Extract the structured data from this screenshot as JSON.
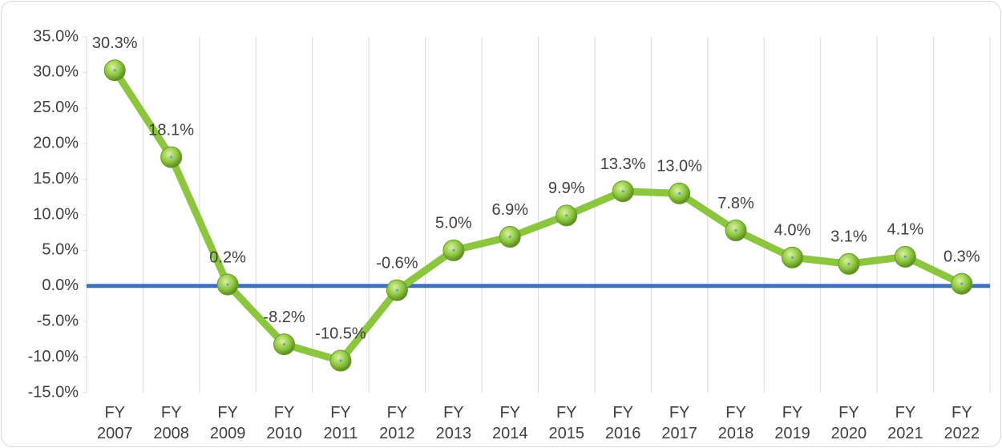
{
  "chart_data": {
    "type": "line",
    "categories": [
      "FY 2007",
      "FY 2008",
      "FY 2009",
      "FY 2010",
      "FY 2011",
      "FY 2012",
      "FY 2013",
      "FY 2014",
      "FY 2015",
      "FY 2016",
      "FY 2017",
      "FY 2018",
      "FY 2019",
      "FY 2020",
      "FY 2021",
      "FY 2022"
    ],
    "values": [
      30.3,
      18.1,
      0.2,
      -8.2,
      -10.5,
      -0.6,
      5.0,
      6.9,
      9.9,
      13.3,
      13.0,
      7.8,
      4.0,
      3.1,
      4.1,
      0.3
    ],
    "value_labels": [
      "30.3%",
      "18.1%",
      "0.2%",
      "-8.2%",
      "-10.5%",
      "-0.6%",
      "5.0%",
      "6.9%",
      "9.9%",
      "13.3%",
      "13.0%",
      "7.8%",
      "4.0%",
      "3.1%",
      "4.1%",
      "0.3%"
    ],
    "color": "#8cc63f",
    "ylim": [
      -15,
      35
    ],
    "yticks": [
      {
        "value": -15,
        "label": "-15.0%"
      },
      {
        "value": -10,
        "label": "-10.0%"
      },
      {
        "value": -5,
        "label": "-5.0%"
      },
      {
        "value": 0,
        "label": "0.0%"
      },
      {
        "value": 5,
        "label": "5.0%"
      },
      {
        "value": 10,
        "label": "10.0%"
      },
      {
        "value": 15,
        "label": "15.0%"
      },
      {
        "value": 20,
        "label": "20.0%"
      },
      {
        "value": 25,
        "label": "25.0%"
      },
      {
        "value": 30,
        "label": "30.0%"
      },
      {
        "value": 35,
        "label": "35.0%"
      }
    ]
  }
}
